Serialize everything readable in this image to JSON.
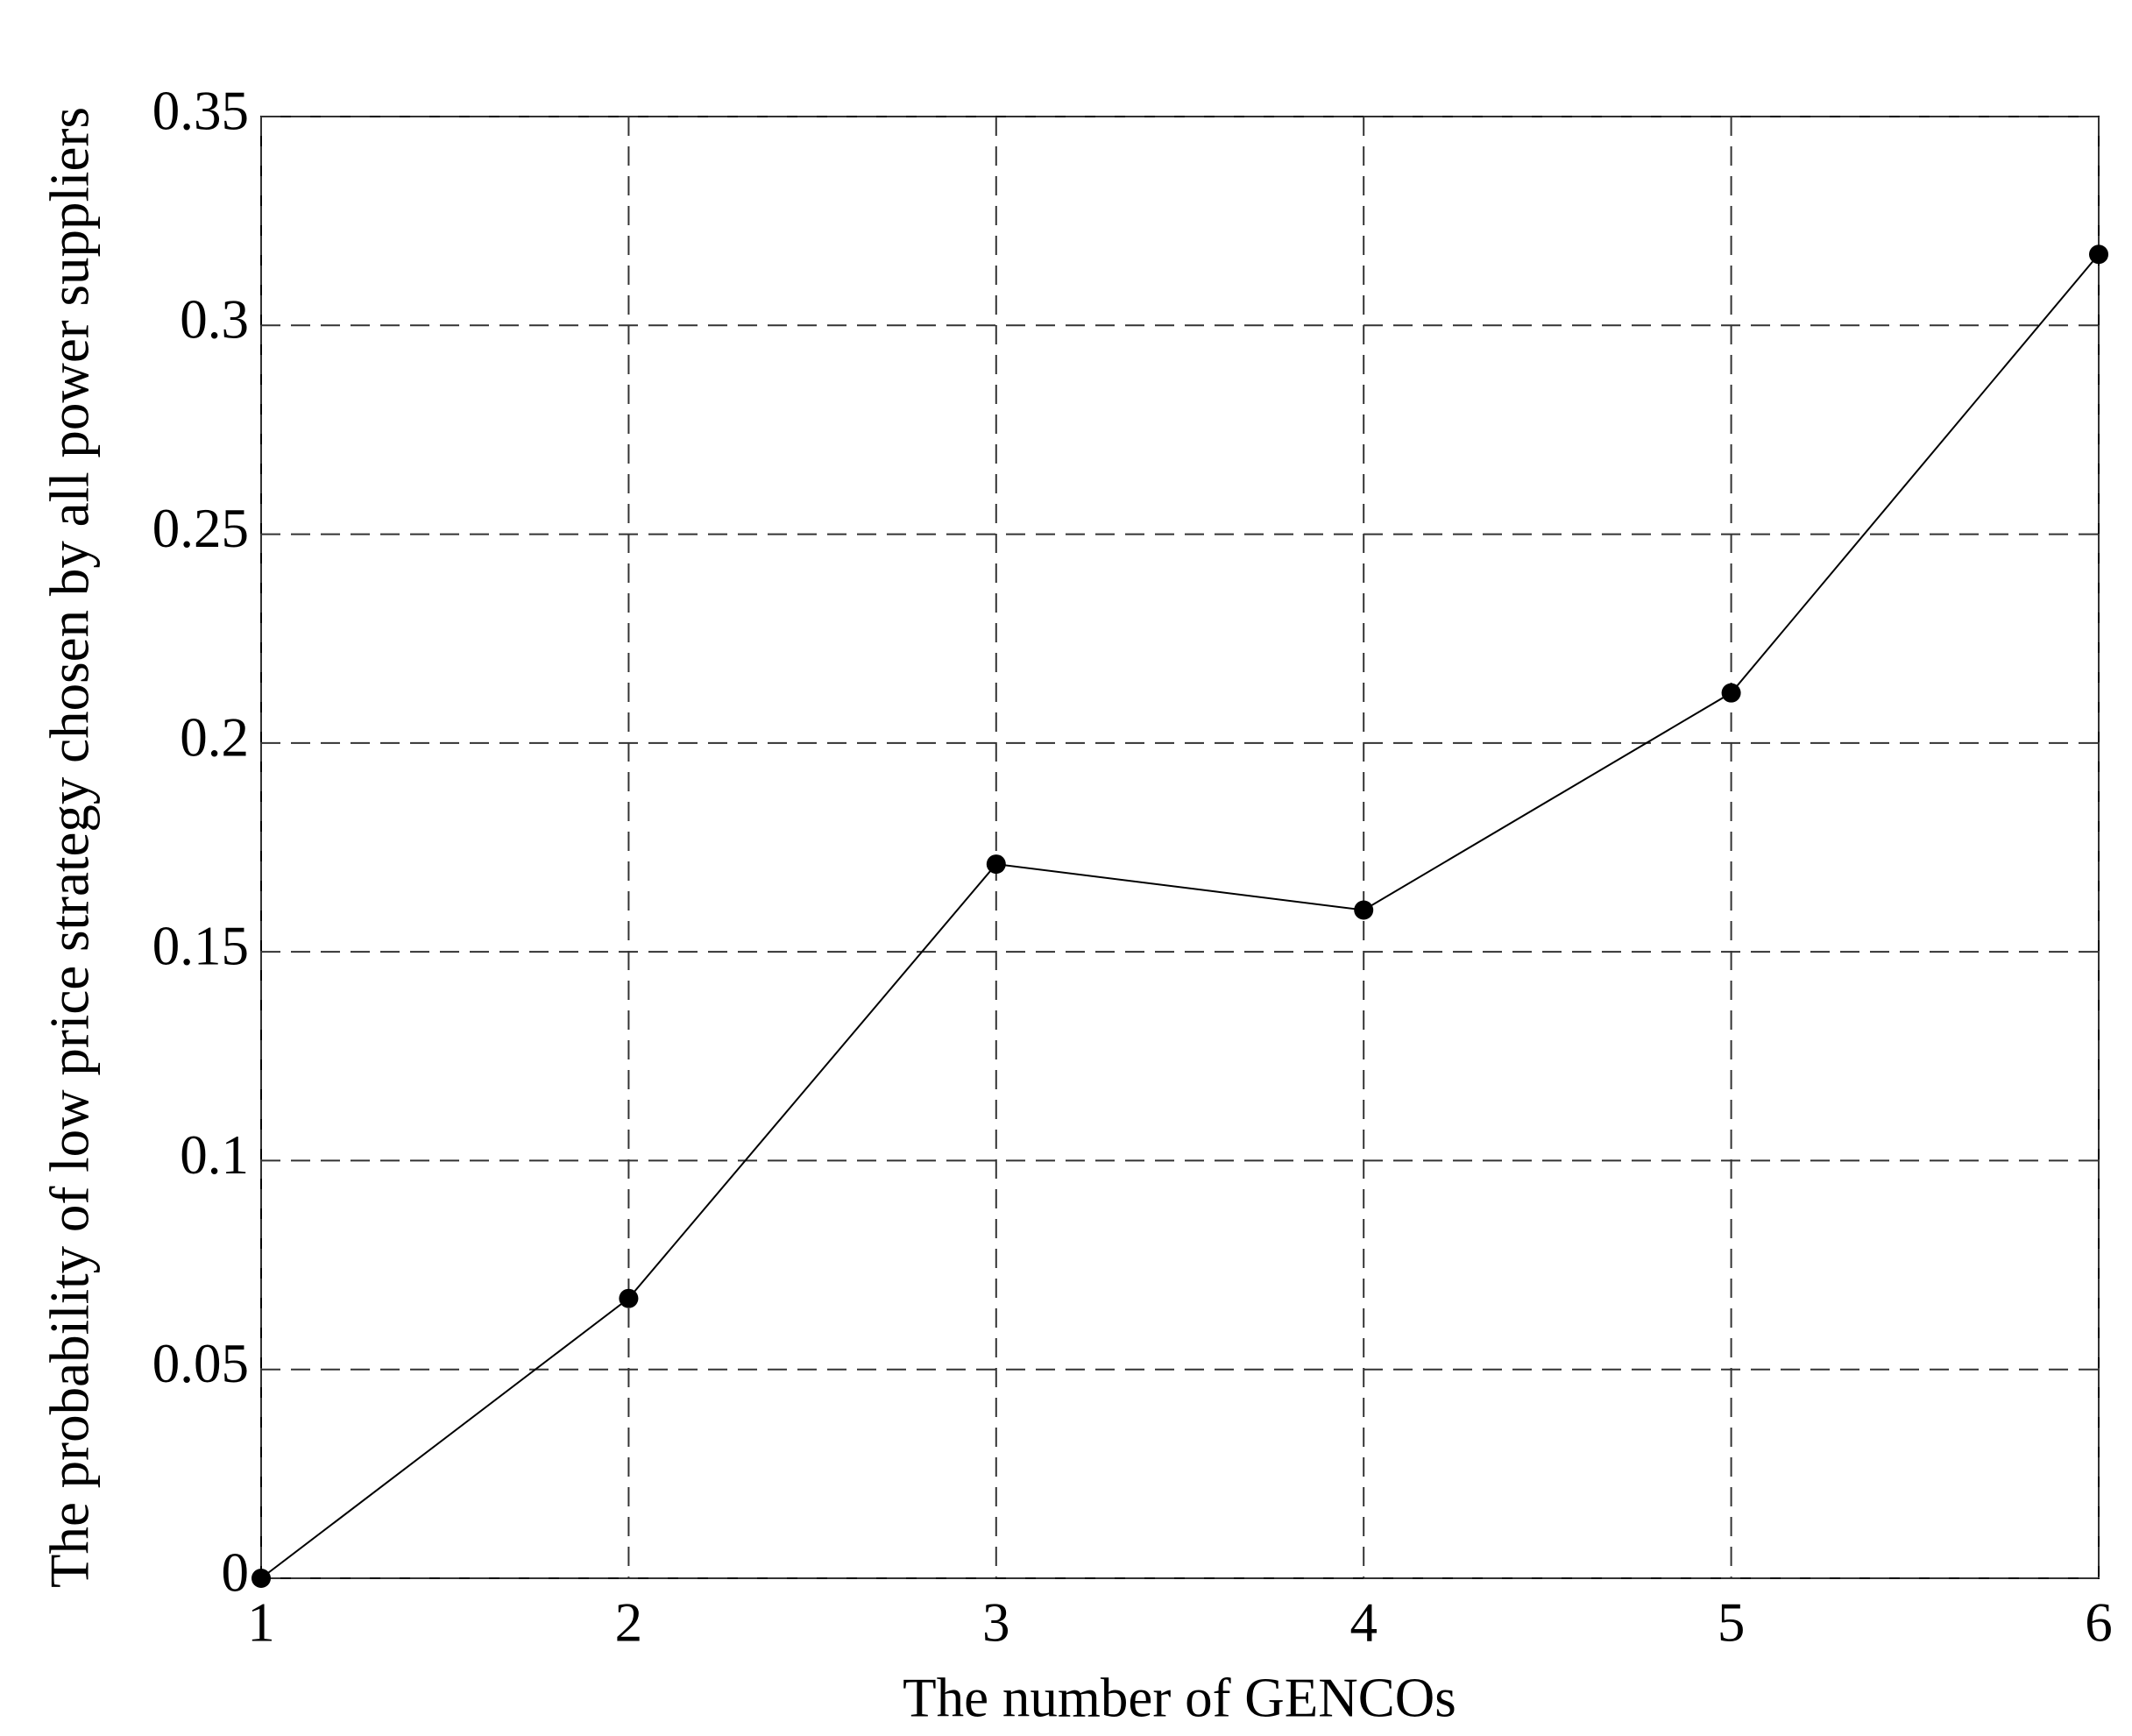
{
  "chart_data": {
    "type": "line",
    "x_label": "The number of GENCOs",
    "y_label": "The probability of low price strategy chosen by all power suppliers",
    "x": [
      1,
      2,
      3,
      4,
      5,
      6
    ],
    "series": [
      {
        "color": "#000000",
        "values": [
          0,
          0.067,
          0.171,
          0.16,
          0.212,
          0.317
        ]
      }
    ],
    "xlim": [
      1,
      6
    ],
    "xticks": [
      1,
      2,
      3,
      4,
      5,
      6
    ],
    "ylim": [
      0,
      0.35
    ],
    "yticks": [
      0,
      0.05,
      0.1,
      0.15,
      0.2,
      0.25,
      0.3,
      0.35
    ],
    "grid": true
  }
}
